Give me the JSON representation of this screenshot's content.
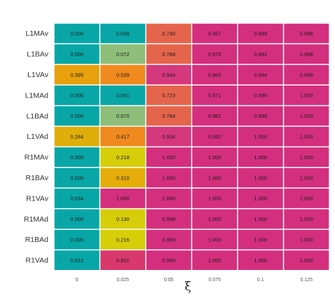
{
  "chart_data": {
    "type": "heatmap",
    "title": "",
    "xlabel": "ξ",
    "ylabel": "",
    "x": [
      "0",
      "0.025",
      "0.05",
      "0.075",
      "0.1",
      "0.125"
    ],
    "y": [
      "L1MAv",
      "L1BAv",
      "L1VAv",
      "L1MAd",
      "L1BAd",
      "L1VAd",
      "R1MAv",
      "R1BAv",
      "R1VAv",
      "R1MAd",
      "R1BAd",
      "R1VAd"
    ],
    "values": [
      [
        "0.000",
        "0.049",
        "0.730",
        "0.957",
        "0.989",
        "0.998"
      ],
      [
        "0.000",
        "0.072",
        "0.789",
        "0.970",
        "0.992",
        "0.998"
      ],
      [
        "0.395",
        "0.539",
        "0.944",
        "0.965",
        "0.994",
        "0.998"
      ],
      [
        "0.000",
        "0.041",
        "0.723",
        "0.971",
        "0.999",
        "1.000"
      ],
      [
        "0.000",
        "0.070",
        "0.784",
        "0.981",
        "0.999",
        "1.000"
      ],
      [
        "0.284",
        "0.417",
        "0.934",
        "0.992",
        "1.000",
        "1.000"
      ],
      [
        "0.000",
        "0.218",
        "1.000",
        "1.000",
        "1.000",
        "1.000"
      ],
      [
        "0.000",
        "0.310",
        "1.000",
        "1.000",
        "1.000",
        "1.000"
      ],
      [
        "0.034",
        "1.000",
        "1.000",
        "1.000",
        "1.000",
        "1.000"
      ],
      [
        "0.000",
        "0.130",
        "0.998",
        "1.000",
        "1.000",
        "1.000"
      ],
      [
        "0.000",
        "0.216",
        "0.999",
        "1.000",
        "1.000",
        "1.000"
      ],
      [
        "0.012",
        "0.931",
        "0.999",
        "1.000",
        "1.000",
        "1.000"
      ]
    ],
    "cell_colors": [
      [
        "#08a6a6",
        "#08a6a6",
        "#e5654c",
        "#d42f7e",
        "#d42f7e",
        "#d42f7e"
      ],
      [
        "#08a6a6",
        "#8ebe7a",
        "#e5654c",
        "#d42f7e",
        "#d42f7e",
        "#d42f7e"
      ],
      [
        "#e8a00c",
        "#f08a1e",
        "#d6387e",
        "#d42f7e",
        "#d42f7e",
        "#d42f7e"
      ],
      [
        "#08a6a6",
        "#08a6a6",
        "#e5654c",
        "#d42f7e",
        "#d42f7e",
        "#d42f7e"
      ],
      [
        "#08a6a6",
        "#8ebe7a",
        "#e5654c",
        "#d42f7e",
        "#d42f7e",
        "#d42f7e"
      ],
      [
        "#e0ae0a",
        "#f08a1e",
        "#d6387e",
        "#d42f7e",
        "#d42f7e",
        "#d42f7e"
      ],
      [
        "#08a6a6",
        "#d7cd08",
        "#d42f7e",
        "#d42f7e",
        "#d42f7e",
        "#d42f7e"
      ],
      [
        "#08a6a6",
        "#e6ad0a",
        "#d42f7e",
        "#d42f7e",
        "#d42f7e",
        "#d42f7e"
      ],
      [
        "#08a6a6",
        "#d42f7e",
        "#d42f7e",
        "#d42f7e",
        "#d42f7e",
        "#d42f7e"
      ],
      [
        "#08a6a6",
        "#d7cd08",
        "#d42f7e",
        "#d42f7e",
        "#d42f7e",
        "#d42f7e"
      ],
      [
        "#08a6a6",
        "#d7cd08",
        "#d42f7e",
        "#d42f7e",
        "#d42f7e",
        "#d42f7e"
      ],
      [
        "#08a6a6",
        "#d9386e",
        "#d42f7e",
        "#d42f7e",
        "#d42f7e",
        "#d42f7e"
      ]
    ],
    "grid": false,
    "legend": "none"
  }
}
